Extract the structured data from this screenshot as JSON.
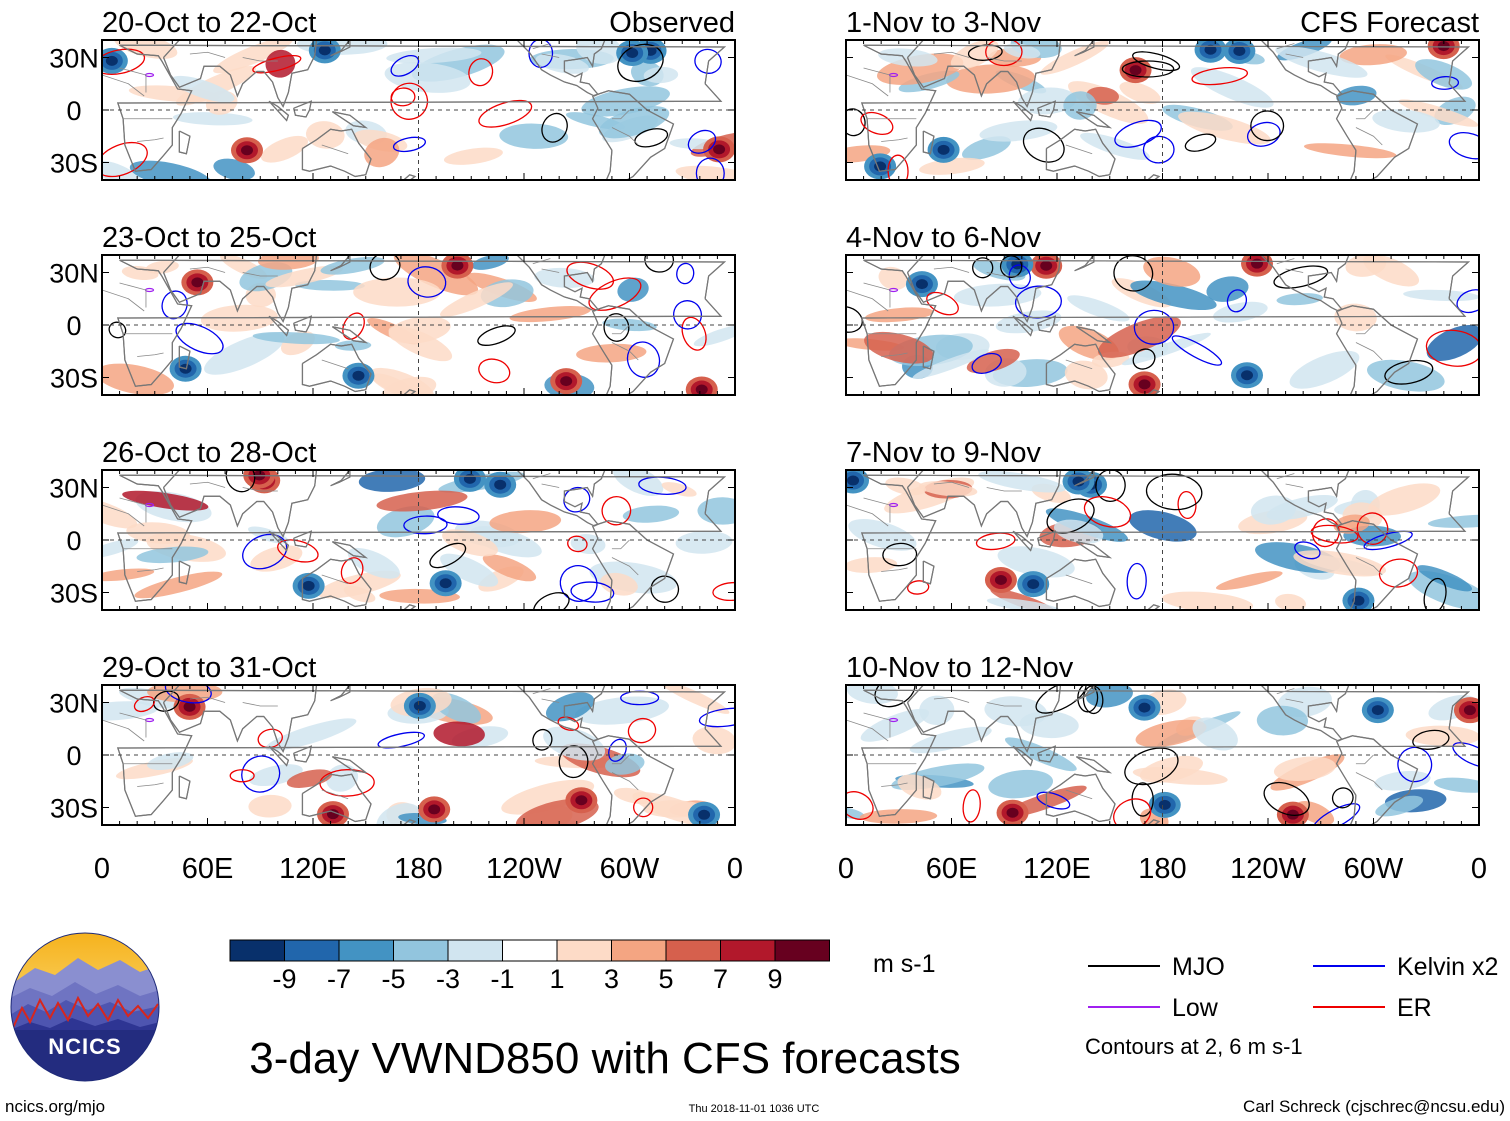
{
  "title": "3-day VWND850 with CFS forecasts",
  "footer": {
    "left": "ncics.org/mjo",
    "center": "Thu 2018-11-01 1036 UTC",
    "right": "Carl Schreck (cjschrec@ncsu.edu)"
  },
  "logo": {
    "text": "NCICS"
  },
  "columns": [
    {
      "label": "Observed",
      "panels": [
        "20-Oct to 22-Oct",
        "23-Oct to 25-Oct",
        "26-Oct to 28-Oct",
        "29-Oct to 31-Oct"
      ]
    },
    {
      "label": "CFS Forecast",
      "panels": [
        "1-Nov to 3-Nov",
        "4-Nov to 6-Nov",
        "7-Nov to 9-Nov",
        "10-Nov to 12-Nov"
      ]
    }
  ],
  "colorbar": {
    "unit": "m s-1",
    "ticks": [
      "-9",
      "-7",
      "-5",
      "-3",
      "-1",
      "1",
      "3",
      "5",
      "7",
      "9"
    ],
    "colors": [
      "#08306b",
      "#2166ac",
      "#4393c3",
      "#92c5de",
      "#d1e5f0",
      "#ffffff",
      "#fddbc7",
      "#f4a582",
      "#d6604d",
      "#b2182b",
      "#67001f"
    ]
  },
  "legend": {
    "items": [
      {
        "label": "MJO",
        "color": "#000000"
      },
      {
        "label": "Kelvin x2",
        "color": "#0000ee"
      },
      {
        "label": "Low",
        "color": "#a020f0"
      },
      {
        "label": "ER",
        "color": "#ee0000"
      }
    ],
    "note": "Contours at 2, 6 m s-1"
  },
  "chart_data": {
    "type": "heatmap",
    "variable": "VWND850",
    "xlabel": "",
    "ylabel": "",
    "x_ticks": [
      "0",
      "60E",
      "120E",
      "180",
      "120W",
      "60W",
      "0"
    ],
    "x_tick_values": [
      0,
      60,
      120,
      180,
      240,
      300,
      360
    ],
    "xlim": [
      0,
      360
    ],
    "y_ticks": [
      "30N",
      "0",
      "30S"
    ],
    "y_tick_values": [
      30,
      0,
      -30
    ],
    "ylim": [
      -40,
      40
    ],
    "panels": [
      {
        "period": "20-Oct to 22-Oct",
        "source": "Observed"
      },
      {
        "period": "23-Oct to 25-Oct",
        "source": "Observed"
      },
      {
        "period": "26-Oct to 28-Oct",
        "source": "Observed"
      },
      {
        "period": "29-Oct to 31-Oct",
        "source": "Observed"
      },
      {
        "period": "1-Nov to 3-Nov",
        "source": "CFS Forecast"
      },
      {
        "period": "4-Nov to 6-Nov",
        "source": "CFS Forecast"
      },
      {
        "period": "7-Nov to 9-Nov",
        "source": "CFS Forecast"
      },
      {
        "period": "10-Nov to 12-Nov",
        "source": "CFS Forecast"
      }
    ],
    "color_levels": [
      -9,
      -7,
      -5,
      -3,
      -1,
      1,
      3,
      5,
      7,
      9
    ],
    "contour_levels": [
      2,
      6
    ],
    "contour_units": "m s-1"
  }
}
